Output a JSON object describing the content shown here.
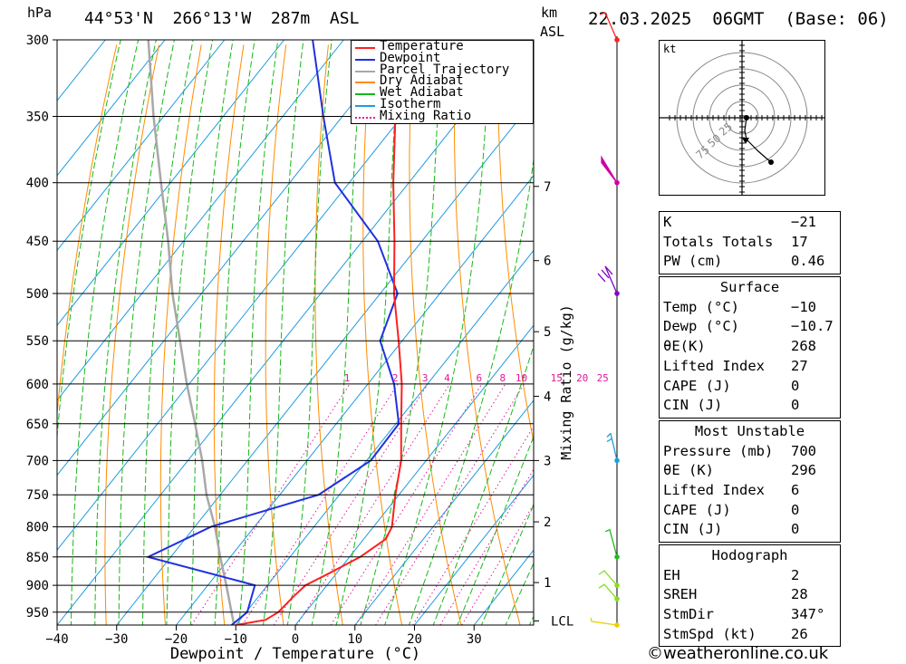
{
  "header": {
    "hpa_unit": "hPa",
    "location": "44°53'N  266°13'W  287m  ASL",
    "km_unit": "km",
    "asl_unit": "ASL",
    "datetime": "22.03.2025  06GMT  (Base: 06)"
  },
  "legend": [
    {
      "label": "Temperature",
      "color": "#ff2020",
      "style": "solid"
    },
    {
      "label": "Dewpoint",
      "color": "#2030e0",
      "style": "solid"
    },
    {
      "label": "Parcel Trajectory",
      "color": "#a8a8a8",
      "style": "solid"
    },
    {
      "label": "Dry Adiabat",
      "color": "#ff8c00",
      "style": "solid"
    },
    {
      "label": "Wet Adiabat",
      "color": "#18b818",
      "style": "solid"
    },
    {
      "label": "Isotherm",
      "color": "#1e9be0",
      "style": "solid"
    },
    {
      "label": "Mixing Ratio",
      "color": "#e0189c",
      "style": "dotted"
    }
  ],
  "chart_data": {
    "type": "skewt",
    "xlabel": "Dewpoint / Temperature (°C)",
    "ylabel": "hPa",
    "mixing_ratio_axis_label": "Mixing Ratio (g/kg)",
    "xlim": [
      -40,
      40
    ],
    "ylim_hpa": [
      975,
      300
    ],
    "x_ticks": [
      "−40",
      "−30",
      "−20",
      "−10",
      "0",
      "10",
      "20",
      "30"
    ],
    "pressure_levels": [
      300,
      350,
      400,
      450,
      500,
      550,
      600,
      650,
      700,
      750,
      800,
      850,
      900,
      950
    ],
    "height_km": [
      {
        "km": "7",
        "p": 403
      },
      {
        "km": "6",
        "p": 468
      },
      {
        "km": "5",
        "p": 540
      },
      {
        "km": "4",
        "p": 615
      },
      {
        "km": "3",
        "p": 700
      },
      {
        "km": "2",
        "p": 792
      },
      {
        "km": "1",
        "p": 895
      },
      {
        "km": "LCL",
        "p": 967
      }
    ],
    "mixing_ratio_labels": [
      "1",
      "2",
      "3",
      "4",
      "6",
      "8",
      "10",
      "15",
      "20",
      "25"
    ],
    "temperature": [
      {
        "p": 975,
        "t": -10
      },
      {
        "p": 965,
        "t": -5.7
      },
      {
        "p": 950,
        "t": -4.6
      },
      {
        "p": 920,
        "t": -4.1
      },
      {
        "p": 900,
        "t": -3.6
      },
      {
        "p": 880,
        "t": -1.4
      },
      {
        "p": 850,
        "t": 1.8
      },
      {
        "p": 820,
        "t": 3.7
      },
      {
        "p": 800,
        "t": 3.1
      },
      {
        "p": 750,
        "t": -0.6
      },
      {
        "p": 700,
        "t": -4.2
      },
      {
        "p": 650,
        "t": -9.1
      },
      {
        "p": 600,
        "t": -14.3
      },
      {
        "p": 550,
        "t": -20.6
      },
      {
        "p": 500,
        "t": -27.7
      },
      {
        "p": 450,
        "t": -34.6
      },
      {
        "p": 400,
        "t": -42.6
      },
      {
        "p": 350,
        "t": -51.1
      },
      {
        "p": 300,
        "t": -60.2
      }
    ],
    "dewpoint": [
      {
        "p": 975,
        "t": -10.7
      },
      {
        "p": 950,
        "t": -9.8
      },
      {
        "p": 900,
        "t": -12.1
      },
      {
        "p": 850,
        "t": -33.8
      },
      {
        "p": 800,
        "t": -27.3
      },
      {
        "p": 750,
        "t": -13.5
      },
      {
        "p": 700,
        "t": -9.3
      },
      {
        "p": 650,
        "t": -9.5
      },
      {
        "p": 600,
        "t": -15.6
      },
      {
        "p": 550,
        "t": -23.7
      },
      {
        "p": 500,
        "t": -27.1
      },
      {
        "p": 450,
        "t": -37.4
      },
      {
        "p": 400,
        "t": -52.4
      },
      {
        "p": 350,
        "t": -63.2
      },
      {
        "p": 300,
        "t": -75.2
      }
    ],
    "parcel": [
      {
        "p": 975,
        "t": -10.3
      },
      {
        "p": 900,
        "t": -16.9
      },
      {
        "p": 850,
        "t": -21.7
      },
      {
        "p": 800,
        "t": -26.6
      },
      {
        "p": 750,
        "t": -32.3
      },
      {
        "p": 700,
        "t": -37.6
      },
      {
        "p": 650,
        "t": -43.7
      },
      {
        "p": 600,
        "t": -50.4
      },
      {
        "p": 550,
        "t": -57.3
      },
      {
        "p": 500,
        "t": -64.9
      },
      {
        "p": 450,
        "t": -72.6
      },
      {
        "p": 400,
        "t": -81.6
      },
      {
        "p": 350,
        "t": -91.7
      },
      {
        "p": 300,
        "t": -102.8
      }
    ],
    "wind_profile": [
      {
        "p": 300,
        "color": "#ff2020"
      },
      {
        "p": 400,
        "color": "#cc00aa"
      },
      {
        "p": 500,
        "color": "#8800cc"
      },
      {
        "p": 700,
        "color": "#1ea0d8"
      },
      {
        "p": 850,
        "color": "#22bb22"
      },
      {
        "p": 900,
        "color": "#88dd22"
      },
      {
        "p": 925,
        "color": "#88dd22"
      },
      {
        "p": 975,
        "color": "#e8d000"
      }
    ]
  },
  "hodograph": {
    "unit": "kt",
    "ring_labels": [
      "25",
      "50",
      "75"
    ]
  },
  "indices": {
    "block1": [
      {
        "label": "K",
        "value": "−21"
      },
      {
        "label": "Totals Totals",
        "value": "17"
      },
      {
        "label": "PW (cm)",
        "value": "0.46"
      }
    ],
    "surface": {
      "title": "Surface",
      "rows": [
        {
          "label": "Temp (°C)",
          "value": "−10"
        },
        {
          "label": "Dewp (°C)",
          "value": "−10.7"
        },
        {
          "label": "θE(K)",
          "value": "268"
        },
        {
          "label": "Lifted Index",
          "value": "27"
        },
        {
          "label": "CAPE (J)",
          "value": "0"
        },
        {
          "label": "CIN (J)",
          "value": "0"
        }
      ]
    },
    "most_unstable": {
      "title": "Most Unstable",
      "rows": [
        {
          "label": "Pressure (mb)",
          "value": "700"
        },
        {
          "label": "θE (K)",
          "value": "296"
        },
        {
          "label": "Lifted Index",
          "value": "6"
        },
        {
          "label": "CAPE (J)",
          "value": "0"
        },
        {
          "label": "CIN (J)",
          "value": "0"
        }
      ]
    },
    "hodograph_block": {
      "title": "Hodograph",
      "rows": [
        {
          "label": "EH",
          "value": "2"
        },
        {
          "label": "SREH",
          "value": "28"
        },
        {
          "label": "StmDir",
          "value": "347°"
        },
        {
          "label": "StmSpd (kt)",
          "value": "26"
        }
      ]
    }
  },
  "footer": {
    "credit": "©weatheronline.co.uk"
  }
}
